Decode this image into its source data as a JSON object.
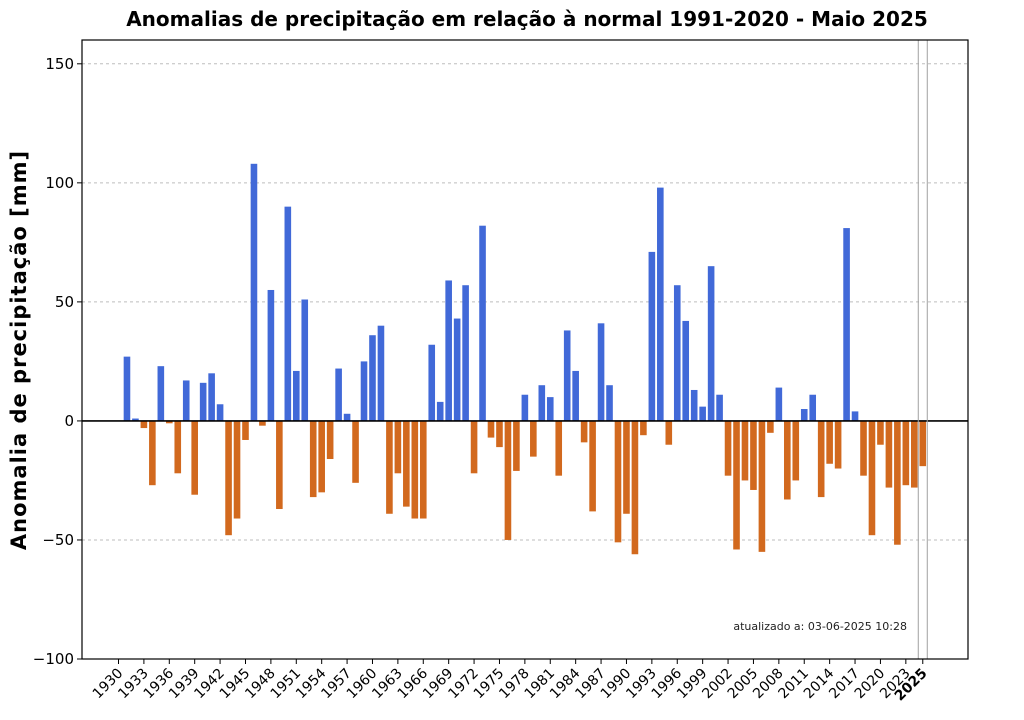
{
  "chart_data": {
    "type": "bar",
    "title": "Anomalias de precipitação em relação à normal 1991-2020 - Maio 2025",
    "ylabel": "Anomalia de precipitação [mm]",
    "xlabel": "",
    "ylim": [
      -100,
      160
    ],
    "yticks": [
      -100,
      -50,
      0,
      50,
      100,
      150
    ],
    "grid": true,
    "updated_note": "atualizado a: 03-06-2025 10:28",
    "positive_color": "#4169d8",
    "negative_color": "#d2691e",
    "highlight_year": 2025,
    "xtick_labels": [
      "1930",
      "1933",
      "1936",
      "1939",
      "1942",
      "1945",
      "1948",
      "1951",
      "1954",
      "1957",
      "1960",
      "1963",
      "1966",
      "1969",
      "1972",
      "1975",
      "1978",
      "1981",
      "1984",
      "1987",
      "1990",
      "1993",
      "1996",
      "1999",
      "2002",
      "2005",
      "2008",
      "2011",
      "2014",
      "2017",
      "2020",
      "2023",
      "2025"
    ],
    "years": [
      1931,
      1932,
      1933,
      1934,
      1935,
      1936,
      1937,
      1938,
      1939,
      1940,
      1941,
      1942,
      1943,
      1944,
      1945,
      1946,
      1947,
      1948,
      1949,
      1950,
      1951,
      1952,
      1953,
      1954,
      1955,
      1956,
      1957,
      1958,
      1959,
      1960,
      1961,
      1962,
      1963,
      1964,
      1965,
      1966,
      1967,
      1968,
      1969,
      1970,
      1971,
      1972,
      1973,
      1974,
      1975,
      1976,
      1977,
      1978,
      1979,
      1980,
      1981,
      1982,
      1983,
      1984,
      1985,
      1986,
      1987,
      1988,
      1989,
      1990,
      1991,
      1992,
      1993,
      1994,
      1995,
      1996,
      1997,
      1998,
      1999,
      2000,
      2001,
      2002,
      2003,
      2004,
      2005,
      2006,
      2007,
      2008,
      2009,
      2010,
      2011,
      2012,
      2013,
      2014,
      2015,
      2016,
      2017,
      2018,
      2019,
      2020,
      2021,
      2022,
      2023,
      2024,
      2025
    ],
    "values": [
      27,
      1,
      -3,
      -27,
      23,
      -1,
      -22,
      17,
      -31,
      16,
      20,
      7,
      -48,
      -41,
      -8,
      108,
      -2,
      55,
      -37,
      90,
      21,
      51,
      -32,
      -30,
      -16,
      22,
      3,
      -26,
      25,
      36,
      40,
      -39,
      -22,
      -36,
      -41,
      -41,
      32,
      8,
      59,
      43,
      57,
      -22,
      82,
      -7,
      -11,
      -50,
      -21,
      11,
      -15,
      15,
      10,
      -23,
      38,
      21,
      -9,
      -38,
      41,
      15,
      -51,
      -39,
      -56,
      -6,
      71,
      98,
      -10,
      57,
      42,
      13,
      6,
      65,
      11,
      -23,
      -54,
      -25,
      -29,
      -55,
      -5,
      14,
      -33,
      -25,
      5,
      11,
      -32,
      -18,
      -20,
      81,
      4,
      -23,
      -48,
      -10,
      -28,
      -52,
      -27,
      -28,
      -19
    ]
  }
}
